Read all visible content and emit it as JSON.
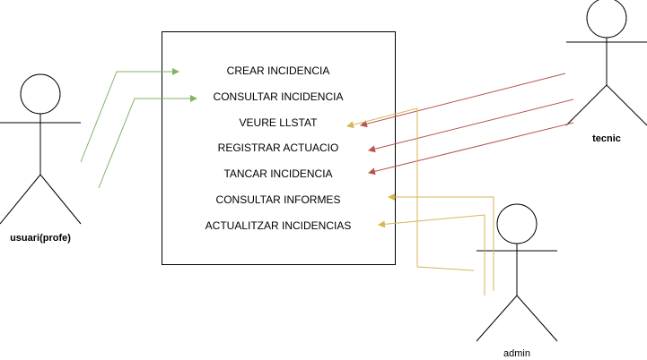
{
  "diagram": {
    "type": "use-case",
    "system_box": {
      "use_cases": [
        {
          "id": "uc1",
          "label": "CREAR INCIDENCIA"
        },
        {
          "id": "uc2",
          "label": "CONSULTAR INCIDENCIA"
        },
        {
          "id": "uc3",
          "label": "VEURE LLSTAT"
        },
        {
          "id": "uc4",
          "label": "REGISTRAR ACTUACIO"
        },
        {
          "id": "uc5",
          "label": "TANCAR INCIDENCIA"
        },
        {
          "id": "uc6",
          "label": "CONSULTAR INFORMES"
        },
        {
          "id": "uc7",
          "label": "ACTUALITZAR INCIDENCIAS"
        }
      ]
    },
    "actors": {
      "usuari": {
        "label": "usuari(profe)"
      },
      "tecnic": {
        "label": "tecnic"
      },
      "admin": {
        "label": "admin"
      }
    },
    "colors": {
      "usuari_links": "#82b366",
      "tecnic_links": "#b85450",
      "admin_links": "#d6b656",
      "outline": "#000000"
    },
    "associations": [
      {
        "from": "usuari",
        "to": "uc1"
      },
      {
        "from": "usuari",
        "to": "uc2"
      },
      {
        "from": "tecnic",
        "to": "uc3"
      },
      {
        "from": "tecnic",
        "to": "uc4"
      },
      {
        "from": "tecnic",
        "to": "uc5"
      },
      {
        "from": "admin",
        "to": "uc3"
      },
      {
        "from": "admin",
        "to": "uc6"
      },
      {
        "from": "admin",
        "to": "uc7"
      }
    ]
  }
}
